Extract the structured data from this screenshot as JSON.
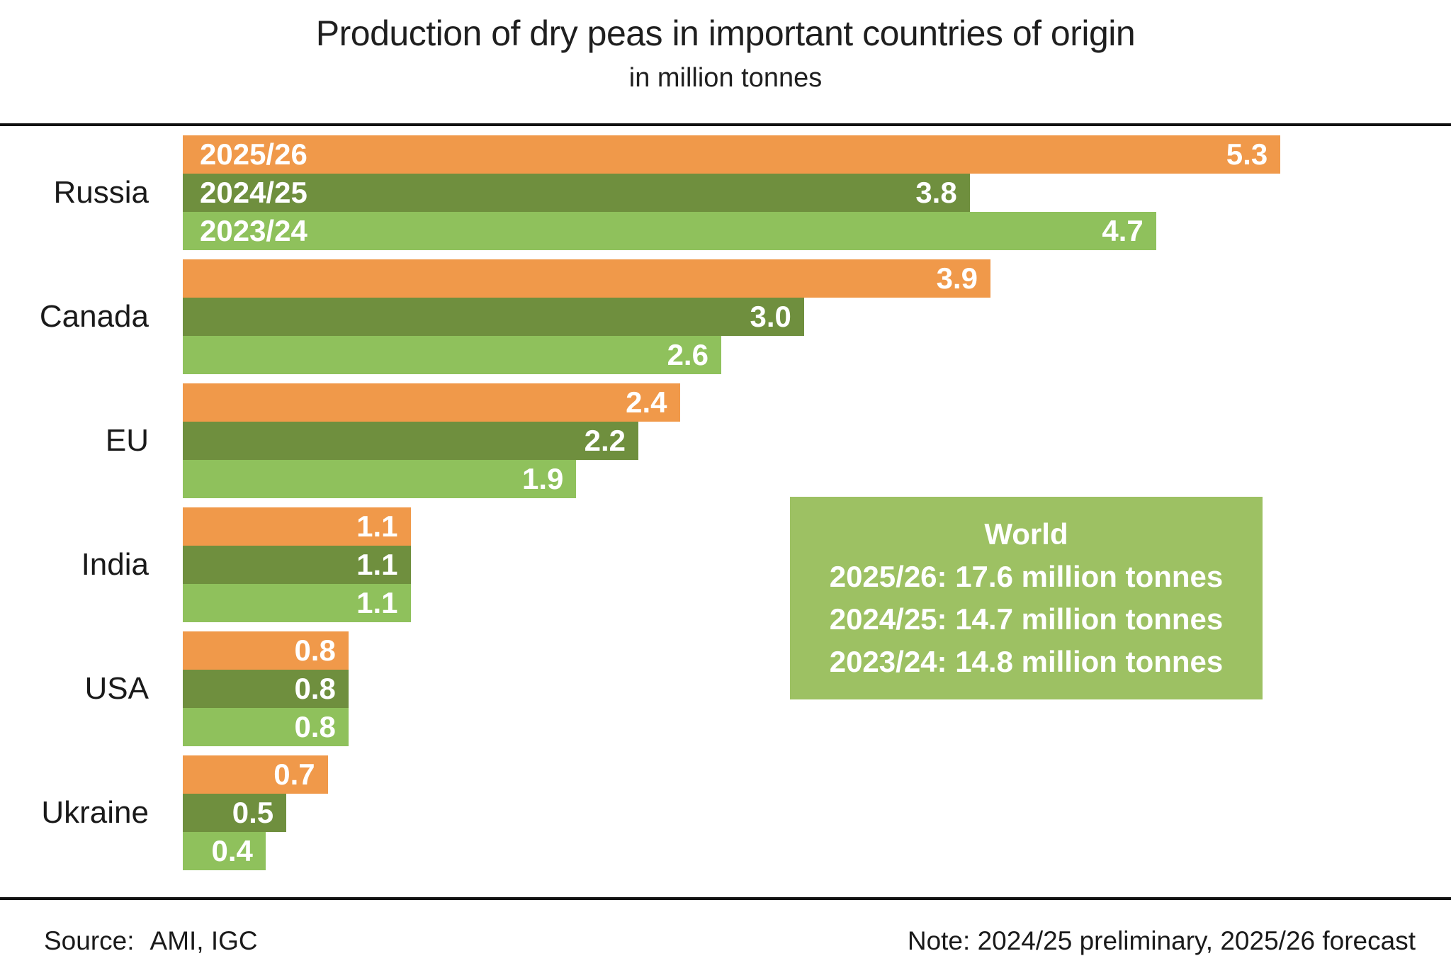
{
  "chart_data": {
    "type": "bar",
    "orientation": "horizontal",
    "title": "Production of dry peas in important countries of origin",
    "subtitle": "in million tonnes",
    "categories": [
      "Russia",
      "Canada",
      "EU",
      "India",
      "USA",
      "Ukraine"
    ],
    "series": [
      {
        "name": "2025/26",
        "color": "#F0994A",
        "values": [
          5.3,
          3.9,
          2.4,
          1.1,
          0.8,
          0.7
        ]
      },
      {
        "name": "2024/25",
        "color": "#6F8F3E",
        "values": [
          3.8,
          3.0,
          2.2,
          1.1,
          0.8,
          0.5
        ]
      },
      {
        "name": "2023/24",
        "color": "#8FC15C",
        "values": [
          4.7,
          2.6,
          1.9,
          1.1,
          0.8,
          0.4
        ]
      }
    ],
    "value_label_decimals": 1,
    "series_labels_shown_on_first_group_only": true,
    "xlim": [
      0,
      6.1
    ],
    "grid": false,
    "legend_position": "inside-first-bars",
    "annotation_box": {
      "color": "#9DC163",
      "title": "World",
      "lines": [
        "2025/26: 17.6 million tonnes",
        "2024/25: 14.7 million tonnes",
        "2023/24: 14.8 million tonnes"
      ]
    }
  },
  "footer": {
    "source_label": "Source:",
    "source_value": "AMI, IGC",
    "note": "Note: 2024/25 preliminary, 2025/26 forecast"
  }
}
